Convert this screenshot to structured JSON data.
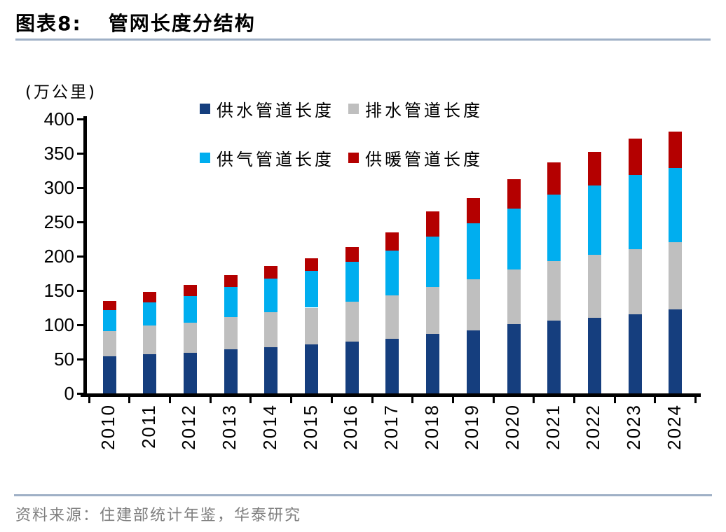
{
  "page": {
    "title_prefix": "图表8:",
    "title": "管网长度分结构",
    "source": "资料来源：住建部统计年鉴，华泰研究"
  },
  "chart_data": {
    "type": "bar",
    "stacked": true,
    "title": "管网长度分结构",
    "unit_label": "(万公里)",
    "xlabel": "",
    "ylabel": "万公里",
    "ylim": [
      0,
      400
    ],
    "ytick_step": 50,
    "grid": false,
    "legend_position": "top",
    "categories": [
      "2010",
      "2011",
      "2012",
      "2013",
      "2014",
      "2015",
      "2016",
      "2017",
      "2018",
      "2019",
      "2020",
      "2021",
      "2022",
      "2023",
      "2024"
    ],
    "series": [
      {
        "name": "供水管道长度",
        "color": "#153E7E",
        "values": [
          54.0,
          57.4,
          59.6,
          64.7,
          67.6,
          71.0,
          75.7,
          79.7,
          86.7,
          92.0,
          100.7,
          106.0,
          110.3,
          115.7,
          122.0
        ]
      },
      {
        "name": "排水管道长度",
        "color": "#BFBFBF",
        "values": [
          37.0,
          41.4,
          43.9,
          46.5,
          51.1,
          54.0,
          57.7,
          63.0,
          68.4,
          74.4,
          80.3,
          87.2,
          91.4,
          95.0,
          98.8
        ]
      },
      {
        "name": "供气管道长度",
        "color": "#00AEEF",
        "values": [
          30.0,
          34.0,
          38.5,
          43.5,
          48.5,
          53.5,
          58.0,
          65.0,
          73.5,
          81.5,
          88.0,
          97.0,
          101.5,
          108.0,
          107.5
        ]
      },
      {
        "name": "供暖管道长度",
        "color": "#B40000",
        "values": [
          14.0,
          15.5,
          16.0,
          18.0,
          18.5,
          18.0,
          21.5,
          27.5,
          37.0,
          36.5,
          43.0,
          46.5,
          49.0,
          52.5,
          53.5
        ]
      }
    ]
  }
}
